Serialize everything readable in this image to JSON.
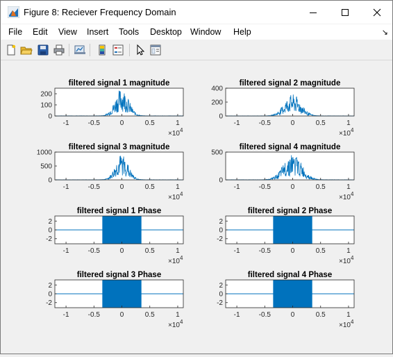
{
  "window": {
    "title": "Figure 8: Reciever Frequency Domain",
    "controls": [
      "minimize",
      "maximize",
      "close"
    ]
  },
  "menu": {
    "items": [
      "File",
      "Edit",
      "View",
      "Insert",
      "Tools",
      "Desktop",
      "Window",
      "Help"
    ]
  },
  "toolbar": {
    "icons": [
      "new-figure-icon",
      "open-file-icon",
      "save-icon",
      "print-icon",
      "link-plot-icon",
      "insert-colorbar-icon",
      "insert-legend-icon",
      "edit-plot-icon",
      "property-inspector-icon"
    ]
  },
  "colors": {
    "plot_line": "#0072bd",
    "axes_bg": "#ffffff",
    "figure_bg": "#f0f0f0"
  },
  "chart_data": [
    {
      "type": "line",
      "title": "filtered signal 1 magnitude",
      "xlim": [
        -12000,
        11000
      ],
      "ylim": [
        0,
        250
      ],
      "x_ticks": [
        "-1",
        "-0.5",
        "0",
        "0.5",
        "1"
      ],
      "y_ticks": [
        "0",
        "100",
        "200"
      ],
      "x_exponent": "×10",
      "x_exponent_power": "4",
      "series": [
        {
          "peak": 250,
          "spread": 1700
        }
      ]
    },
    {
      "type": "line",
      "title": "filtered signal 2 magnitude",
      "xlim": [
        -12000,
        11000
      ],
      "ylim": [
        0,
        400
      ],
      "x_ticks": [
        "-1",
        "-0.5",
        "0",
        "0.5",
        "1"
      ],
      "y_ticks": [
        "0",
        "200",
        "400"
      ],
      "x_exponent": "×10",
      "x_exponent_power": "4",
      "series": [
        {
          "peak": 310,
          "spread": 2100
        }
      ]
    },
    {
      "type": "line",
      "title": "filtered signal 3 magnitude",
      "xlim": [
        -12000,
        11000
      ],
      "ylim": [
        0,
        1000
      ],
      "x_ticks": [
        "-1",
        "-0.5",
        "0",
        "0.5",
        "1"
      ],
      "y_ticks": [
        "0",
        "500",
        "1000"
      ],
      "x_exponent": "×10",
      "x_exponent_power": "4",
      "series": [
        {
          "peak": 920,
          "spread": 1600
        }
      ]
    },
    {
      "type": "line",
      "title": "filtered signal 4 magnitude",
      "xlim": [
        -12000,
        11000
      ],
      "ylim": [
        0,
        500
      ],
      "x_ticks": [
        "-1",
        "-0.5",
        "0",
        "0.5",
        "1"
      ],
      "y_ticks": [
        "0",
        "500"
      ],
      "x_exponent": "×10",
      "x_exponent_power": "4",
      "series": [
        {
          "peak": 470,
          "spread": 2300
        }
      ]
    },
    {
      "type": "line",
      "title": "filtered signal 1 Phase",
      "xlim": [
        -12000,
        11000
      ],
      "ylim": [
        -3.14,
        3.14
      ],
      "x_ticks": [
        "-1",
        "-0.5",
        "0",
        "0.5",
        "1"
      ],
      "y_ticks": [
        "2",
        "0",
        "-2"
      ],
      "x_exponent": "×10",
      "x_exponent_power": "4",
      "band": [
        -3500,
        3500
      ]
    },
    {
      "type": "line",
      "title": "filtered signal 2 Phase",
      "xlim": [
        -12000,
        11000
      ],
      "ylim": [
        -3.14,
        3.14
      ],
      "x_ticks": [
        "-1",
        "-0.5",
        "0",
        "0.5",
        "1"
      ],
      "y_ticks": [
        "2",
        "0",
        "-2"
      ],
      "x_exponent": "×10",
      "x_exponent_power": "4",
      "band": [
        -3500,
        3500
      ]
    },
    {
      "type": "line",
      "title": "filtered signal 3 Phase",
      "xlim": [
        -12000,
        11000
      ],
      "ylim": [
        -3.14,
        3.14
      ],
      "x_ticks": [
        "-1",
        "-0.5",
        "0",
        "0.5",
        "1"
      ],
      "y_ticks": [
        "2",
        "0",
        "-2"
      ],
      "x_exponent": "×10",
      "x_exponent_power": "4",
      "band": [
        -3500,
        3500
      ]
    },
    {
      "type": "line",
      "title": "filtered signal 4 Phase",
      "xlim": [
        -12000,
        11000
      ],
      "ylim": [
        -3.14,
        3.14
      ],
      "x_ticks": [
        "-1",
        "-0.5",
        "0",
        "0.5",
        "1"
      ],
      "y_ticks": [
        "2",
        "0",
        "-2"
      ],
      "x_exponent": "×10",
      "x_exponent_power": "4",
      "band": [
        -3500,
        3500
      ]
    }
  ]
}
